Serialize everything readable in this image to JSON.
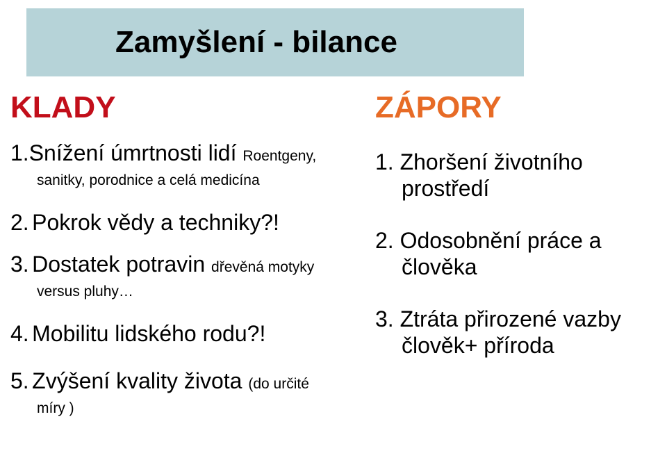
{
  "colors": {
    "title_bg": "#b6d3d8",
    "klady_color": "#c20e1a",
    "zapory_color": "#e76b26",
    "text": "#000000",
    "background": "#ffffff"
  },
  "title": "Zamyšlení - bilance",
  "klady": {
    "heading": "KLADY",
    "items": [
      {
        "num": "1.",
        "main": "Snížení úmrtnosti lidí ",
        "sub1": "Roentgeny,",
        "sub2": "sanitky, porodnice a celá medicína"
      },
      {
        "num": "2.",
        "main": "Pokrok vědy a techniky?!"
      },
      {
        "num": "3.",
        "main": "Dostatek potravin ",
        "sub1": "dřevěná motyky",
        "sub2": "versus pluhy…"
      },
      {
        "num": "4.",
        "main": "Mobilitu lidského rodu?!"
      },
      {
        "num": "5.",
        "main": "Zvýšení kvality života ",
        "sub1": "(do určité",
        "sub2": "míry )"
      }
    ]
  },
  "zapory": {
    "heading": "ZÁPORY",
    "items": [
      {
        "num": "1.",
        "line1": "Zhoršení životního",
        "line2": "prostředí"
      },
      {
        "num": "2.",
        "line1": "Odosobnění práce a",
        "line2": "člověka"
      },
      {
        "num": "3.",
        "line1": "Ztráta přirozené vazby",
        "line2": "člověk+ příroda"
      }
    ]
  }
}
